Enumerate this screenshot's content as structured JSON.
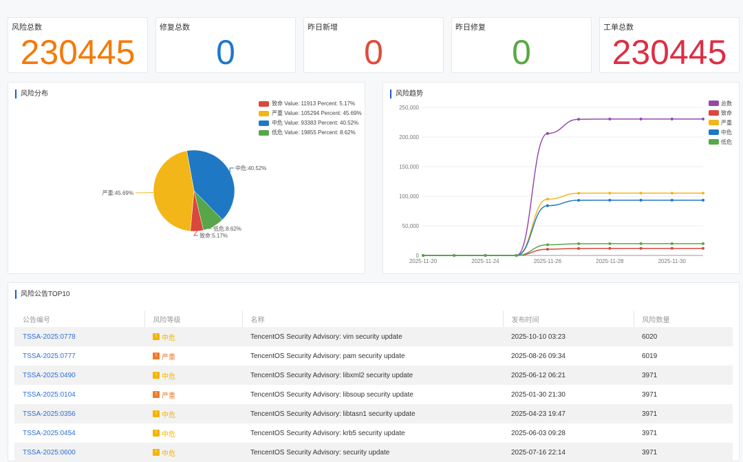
{
  "cards": [
    {
      "label": "风险总数",
      "value": "230445",
      "color": "#f57a0a"
    },
    {
      "label": "修复总数",
      "value": "0",
      "color": "#1f78c8"
    },
    {
      "label": "昨日新增",
      "value": "0",
      "color": "#e04b3c"
    },
    {
      "label": "昨日修复",
      "value": "0",
      "color": "#58a845"
    },
    {
      "label": "工单总数",
      "value": "230445",
      "color": "#dc2f45"
    }
  ],
  "distribution": {
    "title": "风险分布"
  },
  "trend": {
    "title": "风险趋势"
  },
  "chart_data": [
    {
      "type": "pie",
      "slices": [
        {
          "name": "致命",
          "value": 11913,
          "percent": "5.17%",
          "color": "#d9483c",
          "legend": "致命 Value: 11913 Percent: 5.17%",
          "label": "致命:5.17%"
        },
        {
          "name": "严重",
          "value": 105294,
          "percent": "45.69%",
          "color": "#f2b619",
          "legend": "严重 Value: 105294 Percent: 45.69%",
          "label": "严重:45.69%"
        },
        {
          "name": "中危",
          "value": 93383,
          "percent": "40.52%",
          "color": "#1f78c4",
          "legend": "中危 Value: 93383 Percent: 40.52%",
          "label": "中危:40.52%"
        },
        {
          "name": "低危",
          "value": 19855,
          "percent": "8.62%",
          "color": "#57a64a",
          "legend": "低危 Value: 19855 Percent: 8.62%",
          "label": "低危:8.62%"
        }
      ],
      "legend_position": "top-right"
    },
    {
      "type": "line",
      "x": [
        "2025-11-20",
        "2025-11-22",
        "2025-11-24",
        "2025-11-25",
        "2025-11-26",
        "2025-11-27",
        "2025-11-28",
        "2025-11-29",
        "2025-11-30",
        "2025-12-01"
      ],
      "x_tick_labels": [
        "2025-11-20",
        "2025-11-24",
        "2025-11-26",
        "2025-11-28",
        "2025-11-30"
      ],
      "y_ticks": [
        "0",
        "50,000",
        "100,000",
        "150,000",
        "200,000",
        "250,000"
      ],
      "ylim": [
        0,
        250000
      ],
      "grid": true,
      "legend_position": "right",
      "series": [
        {
          "name": "总数",
          "color": "#9449a8",
          "values": [
            0,
            0,
            0,
            0,
            206000,
            229900,
            230445,
            230445,
            230445,
            230445
          ]
        },
        {
          "name": "致命",
          "color": "#d9483c",
          "values": [
            0,
            0,
            0,
            0,
            10500,
            11800,
            11913,
            11913,
            11913,
            11913
          ]
        },
        {
          "name": "严重",
          "color": "#f2b619",
          "values": [
            0,
            0,
            0,
            0,
            95000,
            105100,
            105294,
            105294,
            105294,
            105294
          ]
        },
        {
          "name": "中危",
          "color": "#1f78c4",
          "values": [
            0,
            0,
            0,
            0,
            84000,
            93200,
            93383,
            93383,
            93383,
            93383
          ]
        },
        {
          "name": "低危",
          "color": "#57a64a",
          "values": [
            0,
            0,
            0,
            0,
            18000,
            19800,
            19855,
            19855,
            19855,
            19855
          ]
        }
      ]
    }
  ],
  "table": {
    "title": "风险公告TOP10",
    "headers": [
      "公告编号",
      "风险等级",
      "名称",
      "发布时间",
      "风险数量"
    ],
    "rows": [
      {
        "id": "TSSA-2025:0778",
        "level": "中危",
        "name": "TencentOS Security Advisory: vim security update",
        "time": "2025-10-10 03:23",
        "count": "6020"
      },
      {
        "id": "TSSA-2025:0777",
        "level": "严重",
        "name": "TencentOS Security Advisory: pam security update",
        "time": "2025-08-26 09:34",
        "count": "6019"
      },
      {
        "id": "TSSA-2025:0490",
        "level": "中危",
        "name": "TencentOS Security Advisory: libxml2 security update",
        "time": "2025-06-12 06:21",
        "count": "3971"
      },
      {
        "id": "TSSA-2025:0104",
        "level": "严重",
        "name": "TencentOS Security Advisory: libsoup security update",
        "time": "2025-01-30 21:30",
        "count": "3971"
      },
      {
        "id": "TSSA-2025:0356",
        "level": "中危",
        "name": "TencentOS Security Advisory: libtasn1 security update",
        "time": "2025-04-23 19:47",
        "count": "3971"
      },
      {
        "id": "TSSA-2025:0454",
        "level": "中危",
        "name": "TencentOS Security Advisory: krb5 security update",
        "time": "2025-06-03 09:28",
        "count": "3971"
      },
      {
        "id": "TSSA-2025:0600",
        "level": "中危",
        "name": "TencentOS Security Advisory: security update",
        "time": "2025-07-16 22:14",
        "count": "3971"
      }
    ]
  },
  "level_colors": {
    "中危": "#f5b400",
    "严重": "#f07b2d"
  }
}
